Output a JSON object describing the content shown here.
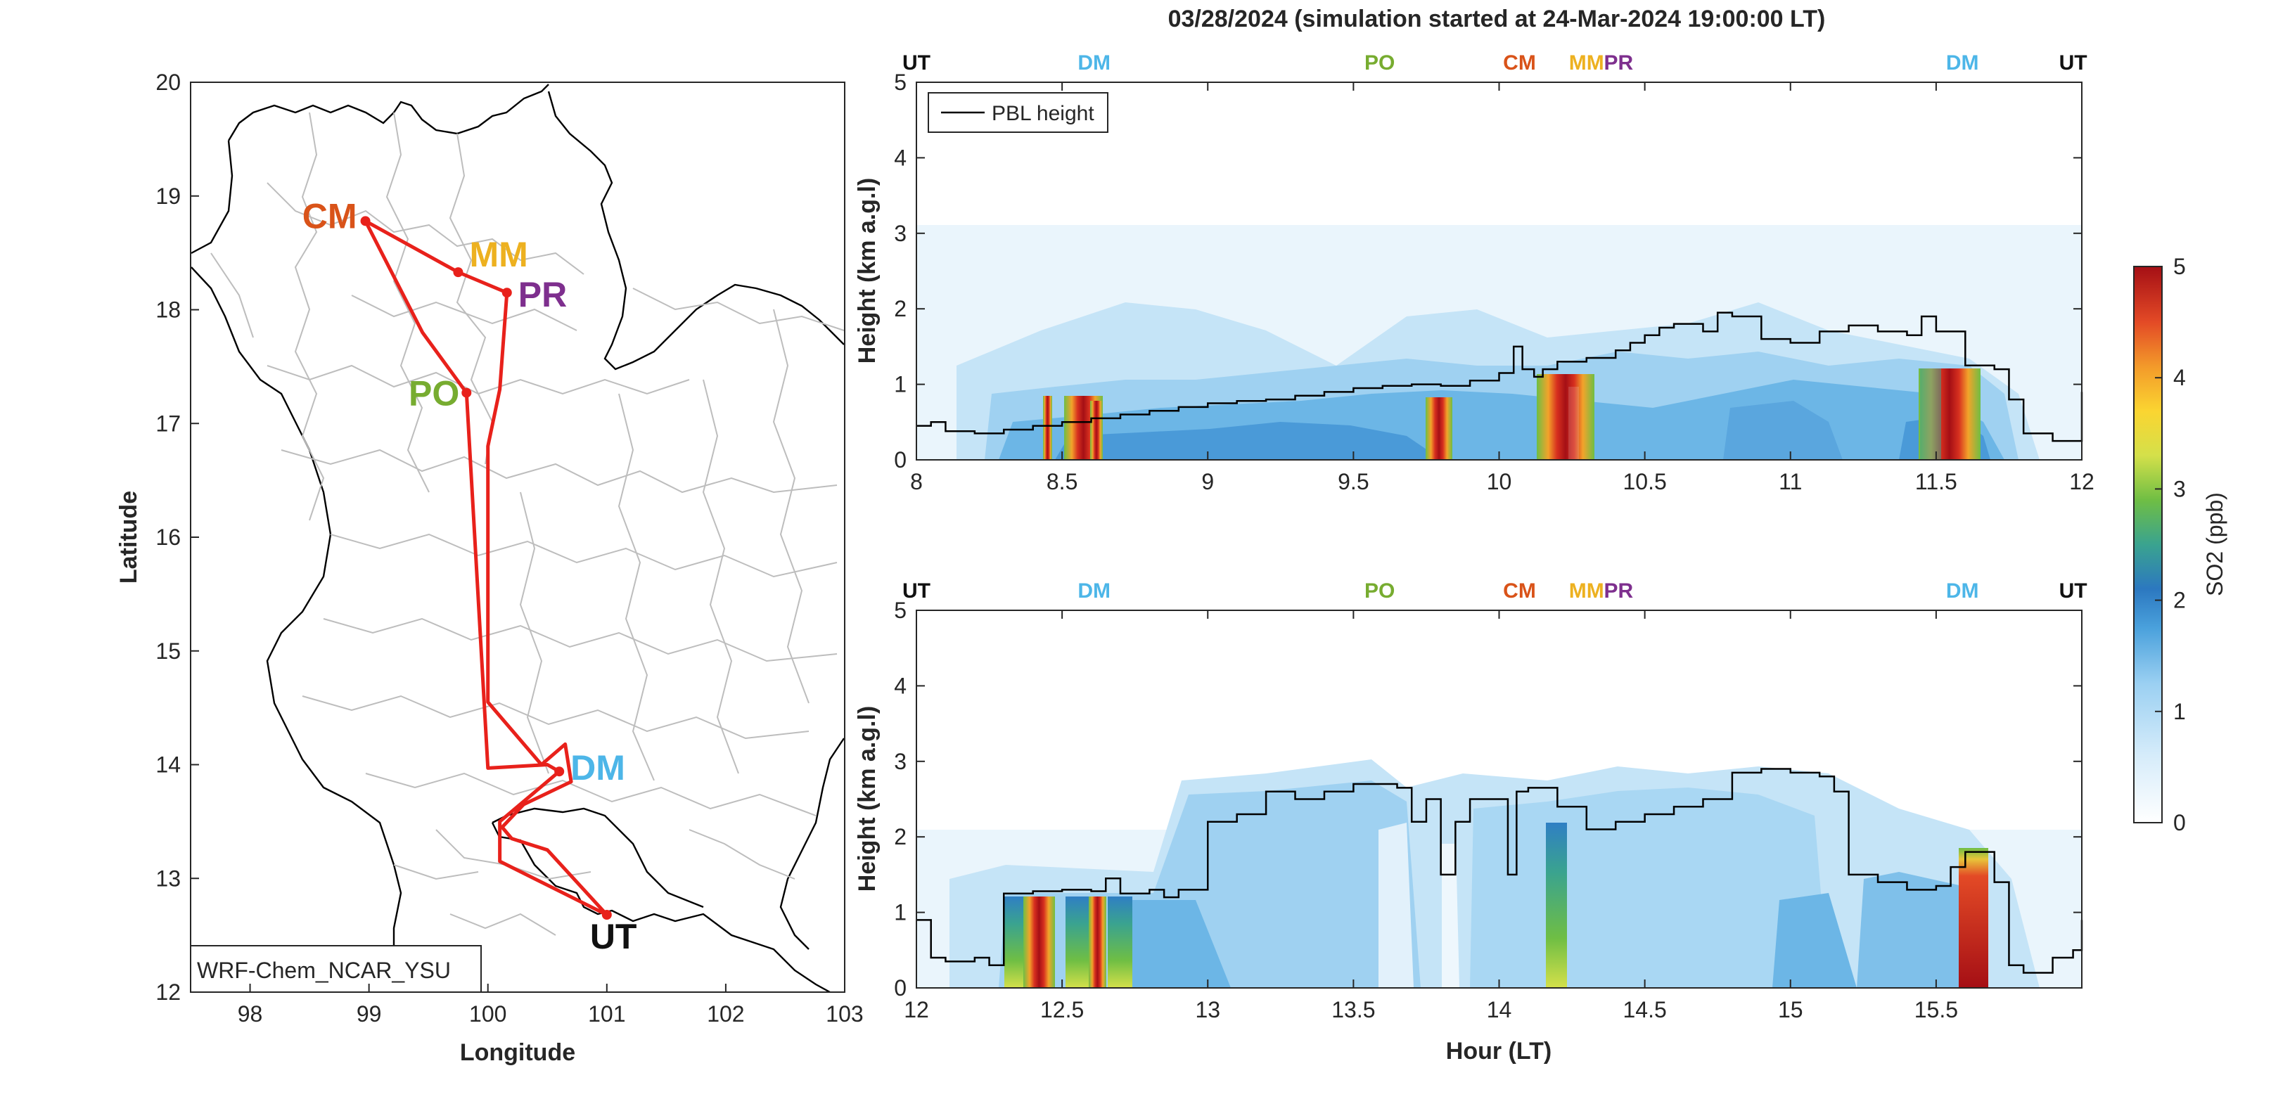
{
  "title": "03/28/2024 (simulation started at 24-Mar-2024 19:00:00 LT)",
  "colors": {
    "route": "#e8211b",
    "UT": "#111111",
    "DM": "#4db6e8",
    "PO": "#77ac30",
    "CM": "#d95319",
    "MM": "#edb120",
    "PR": "#7e2f8e",
    "pbl": "#000000",
    "borders": "#bdbdbd",
    "coast": "#000000"
  },
  "chart_data": [
    {
      "type": "map",
      "xlabel": "Longitude",
      "ylabel": "Latitude",
      "xlim": [
        97.5,
        103
      ],
      "ylim": [
        12,
        20
      ],
      "xticks": [
        98,
        99,
        100,
        101,
        102,
        103
      ],
      "yticks": [
        12,
        13,
        14,
        15,
        16,
        17,
        18,
        19,
        20
      ],
      "model_label": "WRF-Chem_NCAR_YSU",
      "stations": [
        {
          "code": "CM",
          "lon": 98.97,
          "lat": 18.78
        },
        {
          "code": "MM",
          "lon": 99.75,
          "lat": 18.33
        },
        {
          "code": "PR",
          "lon": 100.16,
          "lat": 18.15
        },
        {
          "code": "PO",
          "lon": 99.82,
          "lat": 17.27
        },
        {
          "code": "DM",
          "lon": 100.6,
          "lat": 13.94
        },
        {
          "code": "UT",
          "lon": 101.0,
          "lat": 12.68
        }
      ],
      "route": [
        [
          101.0,
          12.68
        ],
        [
          100.1,
          13.15
        ],
        [
          100.1,
          13.5
        ],
        [
          100.6,
          13.94
        ],
        [
          100.5,
          14.0
        ],
        [
          100.0,
          13.97
        ],
        [
          99.82,
          17.27
        ],
        [
          99.45,
          17.8
        ],
        [
          98.97,
          18.78
        ],
        [
          99.75,
          18.33
        ],
        [
          100.16,
          18.15
        ],
        [
          100.1,
          17.3
        ],
        [
          100.0,
          16.8
        ],
        [
          100.0,
          14.55
        ],
        [
          100.45,
          14.0
        ],
        [
          100.65,
          14.18
        ],
        [
          100.7,
          13.85
        ],
        [
          100.3,
          13.65
        ],
        [
          100.12,
          13.45
        ],
        [
          100.2,
          13.35
        ],
        [
          100.5,
          13.25
        ],
        [
          101.0,
          12.68
        ]
      ]
    },
    {
      "type": "heatmap",
      "panel": "top",
      "xlabel": "",
      "ylabel": "Height (km a.g.l)",
      "xlim": [
        8,
        12
      ],
      "ylim": [
        0,
        5
      ],
      "xticks": [
        8,
        8.5,
        9,
        9.5,
        10,
        10.5,
        11,
        11.5,
        12
      ],
      "yticks": [
        0,
        1,
        2,
        3,
        4,
        5
      ],
      "legend": {
        "position": "top-left",
        "entries": [
          "PBL height"
        ]
      },
      "stations_top": [
        {
          "code": "UT",
          "x": 8.0
        },
        {
          "code": "DM",
          "x": 8.61
        },
        {
          "code": "PO",
          "x": 9.59
        },
        {
          "code": "CM",
          "x": 10.07
        },
        {
          "code": "MM",
          "x": 10.3
        },
        {
          "code": "PR",
          "x": 10.41
        },
        {
          "code": "DM",
          "x": 11.59
        },
        {
          "code": "UT",
          "x": 11.97
        }
      ],
      "pbl": {
        "x": [
          8,
          8.05,
          8.1,
          8.2,
          8.3,
          8.4,
          8.5,
          8.6,
          8.7,
          8.8,
          8.9,
          9,
          9.1,
          9.2,
          9.3,
          9.4,
          9.5,
          9.6,
          9.7,
          9.8,
          9.9,
          10,
          10.05,
          10.08,
          10.1,
          10.12,
          10.15,
          10.2,
          10.3,
          10.4,
          10.45,
          10.5,
          10.55,
          10.6,
          10.7,
          10.75,
          10.8,
          10.9,
          11,
          11.1,
          11.2,
          11.3,
          11.4,
          11.45,
          11.5,
          11.6,
          11.7,
          11.75,
          11.8,
          11.9,
          11.97,
          12
        ],
        "y": [
          0.45,
          0.5,
          0.38,
          0.35,
          0.4,
          0.45,
          0.5,
          0.55,
          0.6,
          0.65,
          0.7,
          0.75,
          0.78,
          0.8,
          0.85,
          0.9,
          0.95,
          0.98,
          1.0,
          0.98,
          1.05,
          1.15,
          1.5,
          1.2,
          1.2,
          1.1,
          1.2,
          1.3,
          1.35,
          1.45,
          1.55,
          1.65,
          1.75,
          1.8,
          1.7,
          1.95,
          1.9,
          1.6,
          1.55,
          1.7,
          1.78,
          1.7,
          1.65,
          1.9,
          1.7,
          1.25,
          1.2,
          0.8,
          0.35,
          0.25,
          0.25,
          0.9
        ]
      },
      "colorbar": {
        "label": "SO2 (ppb)",
        "range": [
          0,
          5
        ],
        "ticks": [
          0,
          1,
          2,
          3,
          4,
          5
        ]
      }
    },
    {
      "type": "heatmap",
      "panel": "bottom",
      "xlabel": "Hour (LT)",
      "ylabel": "Height (km a.g.l)",
      "xlim": [
        12,
        16
      ],
      "ylim": [
        0,
        5
      ],
      "xticks": [
        12,
        12.5,
        13,
        13.5,
        14,
        14.5,
        15,
        15.5
      ],
      "yticks": [
        0,
        1,
        2,
        3,
        4,
        5
      ],
      "stations_top": [
        {
          "code": "UT",
          "x": 12.0
        },
        {
          "code": "DM",
          "x": 12.61
        },
        {
          "code": "PO",
          "x": 13.59
        },
        {
          "code": "CM",
          "x": 14.07
        },
        {
          "code": "MM",
          "x": 14.3
        },
        {
          "code": "PR",
          "x": 14.41
        },
        {
          "code": "DM",
          "x": 15.59
        },
        {
          "code": "UT",
          "x": 15.97
        }
      ],
      "pbl": {
        "x": [
          12,
          12.05,
          12.1,
          12.2,
          12.25,
          12.3,
          12.4,
          12.5,
          12.6,
          12.65,
          12.7,
          12.8,
          12.85,
          12.9,
          13,
          13.1,
          13.2,
          13.3,
          13.4,
          13.5,
          13.6,
          13.65,
          13.7,
          13.75,
          13.8,
          13.85,
          13.9,
          13.95,
          14,
          14.03,
          14.06,
          14.1,
          14.2,
          14.3,
          14.4,
          14.5,
          14.6,
          14.7,
          14.8,
          14.9,
          15,
          15.1,
          15.15,
          15.2,
          15.3,
          15.4,
          15.5,
          15.55,
          15.6,
          15.65,
          15.7,
          15.75,
          15.8,
          15.9,
          15.97,
          16
        ],
        "y": [
          0.9,
          0.4,
          0.35,
          0.4,
          0.3,
          1.25,
          1.28,
          1.3,
          1.28,
          1.45,
          1.25,
          1.3,
          1.2,
          1.3,
          2.2,
          2.3,
          2.6,
          2.5,
          2.6,
          2.7,
          2.7,
          2.65,
          2.2,
          2.5,
          1.5,
          2.2,
          2.5,
          2.5,
          2.5,
          1.5,
          2.6,
          2.65,
          2.4,
          2.1,
          2.2,
          2.3,
          2.4,
          2.5,
          2.85,
          2.9,
          2.85,
          2.8,
          2.6,
          1.5,
          1.4,
          1.3,
          1.35,
          1.6,
          1.8,
          1.8,
          1.4,
          0.3,
          0.2,
          0.4,
          0.5,
          0.9
        ]
      },
      "colorbar": {
        "label": "SO2 (ppb)",
        "range": [
          0,
          5
        ],
        "ticks": [
          0,
          1,
          2,
          3,
          4,
          5
        ]
      }
    }
  ]
}
